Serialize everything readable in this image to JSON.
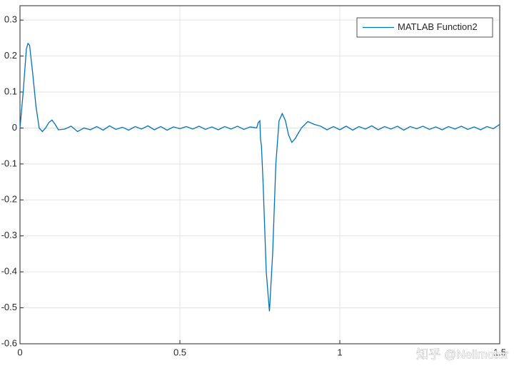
{
  "chart_data": {
    "type": "line",
    "x": [
      0,
      0.01,
      0.02,
      0.025,
      0.03,
      0.04,
      0.05,
      0.06,
      0.07,
      0.08,
      0.09,
      0.1,
      0.11,
      0.12,
      0.14,
      0.16,
      0.18,
      0.2,
      0.22,
      0.24,
      0.26,
      0.28,
      0.3,
      0.32,
      0.34,
      0.36,
      0.38,
      0.4,
      0.42,
      0.44,
      0.46,
      0.48,
      0.5,
      0.52,
      0.54,
      0.56,
      0.58,
      0.6,
      0.62,
      0.64,
      0.66,
      0.68,
      0.7,
      0.72,
      0.74,
      0.745,
      0.75,
      0.752,
      0.755,
      0.76,
      0.77,
      0.78,
      0.79,
      0.8,
      0.81,
      0.82,
      0.83,
      0.84,
      0.85,
      0.86,
      0.88,
      0.9,
      0.92,
      0.94,
      0.96,
      0.98,
      1.0,
      1.02,
      1.04,
      1.06,
      1.08,
      1.1,
      1.12,
      1.14,
      1.16,
      1.18,
      1.2,
      1.22,
      1.24,
      1.26,
      1.28,
      1.3,
      1.32,
      1.34,
      1.36,
      1.38,
      1.4,
      1.42,
      1.44,
      1.46,
      1.48,
      1.5
    ],
    "series": [
      {
        "name": "MATLAB Function2",
        "color": "#0072bd",
        "values": [
          0.0,
          0.1,
          0.22,
          0.235,
          0.23,
          0.15,
          0.06,
          0.0,
          -0.01,
          0.0,
          0.015,
          0.022,
          0.01,
          -0.005,
          -0.003,
          0.005,
          -0.01,
          0.0,
          -0.005,
          0.004,
          -0.006,
          0.006,
          -0.004,
          0.002,
          -0.006,
          0.004,
          -0.003,
          0.006,
          -0.005,
          0.004,
          -0.006,
          0.003,
          -0.002,
          0.004,
          -0.003,
          0.005,
          -0.004,
          0.003,
          -0.005,
          0.004,
          -0.003,
          0.005,
          -0.004,
          0.003,
          0.0,
          0.015,
          0.02,
          -0.03,
          -0.05,
          -0.15,
          -0.4,
          -0.51,
          -0.35,
          -0.1,
          0.02,
          0.04,
          0.02,
          -0.02,
          -0.04,
          -0.03,
          0.0,
          0.018,
          0.01,
          0.005,
          -0.005,
          0.004,
          -0.005,
          0.005,
          -0.006,
          0.004,
          -0.003,
          0.006,
          -0.005,
          0.004,
          -0.003,
          0.005,
          -0.006,
          0.004,
          -0.002,
          0.005,
          -0.004,
          0.003,
          -0.005,
          0.004,
          -0.003,
          0.005,
          -0.004,
          0.003,
          -0.005,
          0.004,
          -0.002,
          0.01
        ]
      }
    ],
    "xlim": [
      0,
      1.5
    ],
    "xticks": [
      0,
      0.5,
      1,
      1.5
    ],
    "ylim": [
      -0.6,
      0.34
    ],
    "yticks": [
      0.3,
      0.2,
      0.1,
      0,
      -0.1,
      -0.2,
      -0.3,
      -0.4,
      -0.5,
      -0.6
    ],
    "grid": true,
    "legend": "northeast",
    "annotation": "知乎 @Neilmotor"
  }
}
